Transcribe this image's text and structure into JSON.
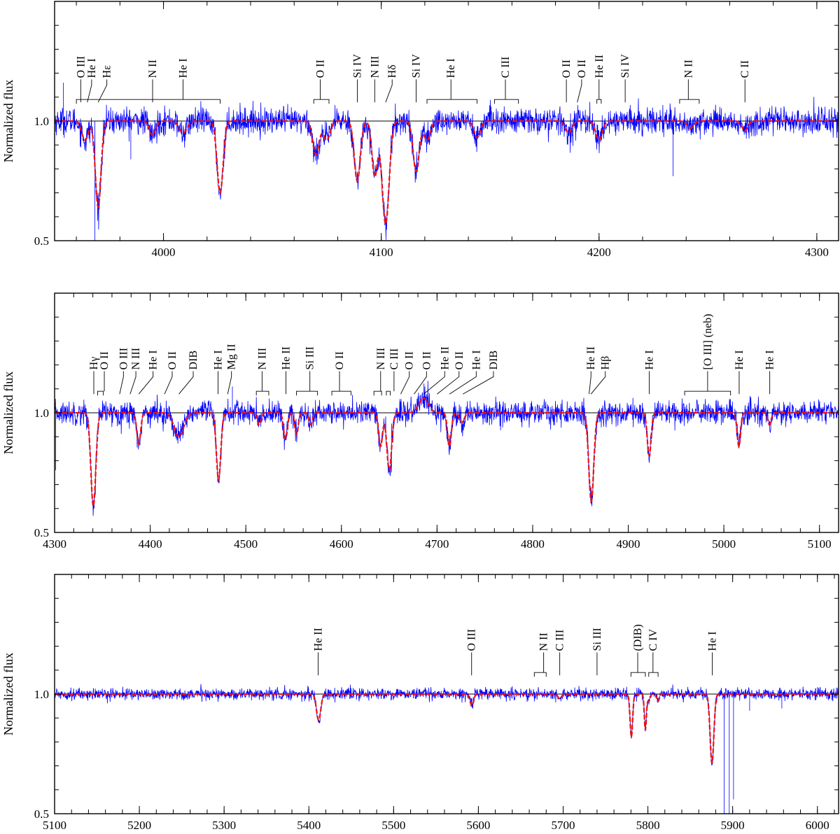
{
  "figure": {
    "ylabel": "Normalized flux"
  },
  "colors": {
    "observed": "#0000ff",
    "model": "#ee1111",
    "axes": "#000000"
  },
  "chart_data": [
    {
      "type": "line",
      "xlim": [
        3950,
        4310
      ],
      "ylim": [
        0.5,
        1.5
      ],
      "ylabel": "Normalized flux",
      "yticks": [
        0.5,
        1.0
      ],
      "ytick_labels": [
        "0.5",
        "1.0"
      ],
      "xticks": [
        4000,
        4100,
        4200,
        4300
      ],
      "xtick_labels": [
        "4000",
        "4100",
        "4200",
        "4300"
      ],
      "xminor_step": 20,
      "series": [
        {
          "style": "observed"
        },
        {
          "style": "model"
        }
      ],
      "observed_noise": 0.028,
      "lines": [
        {
          "x": 3964,
          "depth": 0.08,
          "width": 1.5
        },
        {
          "x": 3970,
          "depth": 0.36,
          "width": 1.3
        },
        {
          "x": 3995,
          "depth": 0.06,
          "width": 1.4
        },
        {
          "x": 4009,
          "depth": 0.05,
          "width": 1.8
        },
        {
          "x": 4026,
          "depth": 0.3,
          "width": 1.4
        },
        {
          "x": 4070,
          "depth": 0.14,
          "width": 1.5
        },
        {
          "x": 4075,
          "depth": 0.08,
          "width": 1.5
        },
        {
          "x": 4089,
          "depth": 0.25,
          "width": 1.4
        },
        {
          "x": 4097,
          "depth": 0.23,
          "width": 1.3
        },
        {
          "x": 4102,
          "depth": 0.43,
          "width": 1.6
        },
        {
          "x": 4116,
          "depth": 0.21,
          "width": 1.4
        },
        {
          "x": 4121,
          "depth": 0.08,
          "width": 1.5
        },
        {
          "x": 4144,
          "depth": 0.07,
          "width": 1.4
        },
        {
          "x": 4186,
          "depth": 0.05,
          "width": 1.5
        },
        {
          "x": 4200,
          "depth": 0.08,
          "width": 1.5
        },
        {
          "x": 4242,
          "depth": 0.03,
          "width": 1.5
        },
        {
          "x": 4267,
          "depth": 0.04,
          "width": 1.4
        }
      ],
      "spikes": [
        {
          "x": 3968.5,
          "y": 0.49
        },
        {
          "x": 4234,
          "y": 0.77
        },
        {
          "x": 3954,
          "y": 1.16
        },
        {
          "x": 3985,
          "y": 0.84
        }
      ],
      "annotations": [
        {
          "label": "O III",
          "x": 3962,
          "ltx": 3962,
          "brack": null
        },
        {
          "label": "He I",
          "x": 3967,
          "ltx": 3965,
          "brack": null
        },
        {
          "label": "Hε",
          "x": 3974,
          "ltx": 3970,
          "brack": null
        },
        {
          "label": "N II",
          "x": 3995,
          "ltx": 3995,
          "brack": null
        },
        {
          "label": "He I",
          "x": 4009,
          "ltx": 4009,
          "brack": [
            3960,
            4026
          ]
        },
        {
          "label": "O II",
          "x": 4072,
          "ltx": 4072,
          "brack": [
            4069,
            4076
          ]
        },
        {
          "label": "Si IV",
          "x": 4089,
          "ltx": 4089,
          "brack": null
        },
        {
          "label": "N III",
          "x": 4097,
          "ltx": 4097,
          "brack": null
        },
        {
          "label": "Hδ",
          "x": 4105,
          "ltx": 4102,
          "brack": null
        },
        {
          "label": "Si IV",
          "x": 4116,
          "ltx": 4116,
          "brack": null
        },
        {
          "label": "He I",
          "x": 4132,
          "ltx": 4132,
          "brack": [
            4121,
            4144
          ]
        },
        {
          "label": "C III",
          "x": 4157,
          "ltx": 4157,
          "brack": [
            4152,
            4163
          ]
        },
        {
          "label": "O II",
          "x": 4185,
          "ltx": 4185,
          "brack": null
        },
        {
          "label": "O II",
          "x": 4192,
          "ltx": 4190,
          "brack": null
        },
        {
          "label": "He II",
          "x": 4200,
          "ltx": 4200,
          "brack": [
            4199,
            4201
          ]
        },
        {
          "label": "Si IV",
          "x": 4212,
          "ltx": 4212,
          "brack": null
        },
        {
          "label": "N II",
          "x": 4241,
          "ltx": 4241,
          "brack": [
            4237,
            4246
          ]
        },
        {
          "label": "C II",
          "x": 4267,
          "ltx": 4267,
          "brack": null
        }
      ]
    },
    {
      "type": "line",
      "xlim": [
        4300,
        5120
      ],
      "ylim": [
        0.5,
        1.5
      ],
      "ylabel": "Normalized flux",
      "yticks": [
        0.5,
        1.0
      ],
      "ytick_labels": [
        "0.5",
        "1.0"
      ],
      "xticks": [
        4300,
        4400,
        4500,
        4600,
        4700,
        4800,
        4900,
        5000,
        5100
      ],
      "xtick_labels": [
        "4300",
        "4400",
        "4500",
        "4600",
        "4700",
        "4800",
        "4900",
        "5000",
        "5100"
      ],
      "xminor_step": 20,
      "series": [
        {
          "style": "observed"
        },
        {
          "style": "model"
        }
      ],
      "observed_noise": 0.025,
      "lines": [
        {
          "x": 4340.5,
          "depth": 0.39,
          "width": 2.6
        },
        {
          "x": 4388,
          "depth": 0.13,
          "width": 2.0
        },
        {
          "x": 4430,
          "depth": 0.1,
          "width": 5.0
        },
        {
          "x": 4471.5,
          "depth": 0.28,
          "width": 2.3
        },
        {
          "x": 4514,
          "depth": 0.05,
          "width": 2.0
        },
        {
          "x": 4541.5,
          "depth": 0.11,
          "width": 2.0
        },
        {
          "x": 4553,
          "depth": 0.09,
          "width": 1.8
        },
        {
          "x": 4568,
          "depth": 0.05,
          "width": 1.8
        },
        {
          "x": 4641,
          "depth": 0.14,
          "width": 2.0
        },
        {
          "x": 4650,
          "depth": 0.24,
          "width": 2.5
        },
        {
          "x": 4713,
          "depth": 0.14,
          "width": 2.0
        },
        {
          "x": 4726,
          "depth": 0.04,
          "width": 2.5
        },
        {
          "x": 4861.3,
          "depth": 0.37,
          "width": 2.6
        },
        {
          "x": 4921.9,
          "depth": 0.18,
          "width": 2.0
        },
        {
          "x": 5015.7,
          "depth": 0.14,
          "width": 1.8
        },
        {
          "x": 5047.7,
          "depth": 0.05,
          "width": 1.8
        }
      ],
      "bumps": [
        {
          "x": 4686,
          "height": 0.06,
          "width": 5.0
        }
      ],
      "spikes": [
        {
          "x": 4301,
          "y": 0.76
        },
        {
          "x": 4486,
          "y": 1.11
        }
      ],
      "annotations": [
        {
          "label": "Hγ",
          "x": 4341,
          "ltx": 4341,
          "brack": null
        },
        {
          "label": "O II",
          "x": 4352,
          "ltx": 4349,
          "brack": [
            4345,
            4351
          ]
        },
        {
          "label": "O III",
          "x": 4372,
          "ltx": 4368,
          "brack": null
        },
        {
          "label": "N III",
          "x": 4385,
          "ltx": 4379,
          "brack": null
        },
        {
          "label": "He I",
          "x": 4403,
          "ltx": 4388,
          "brack": null
        },
        {
          "label": "O II",
          "x": 4423,
          "ltx": 4415,
          "brack": null
        },
        {
          "label": "DIB",
          "x": 4445,
          "ltx": 4430,
          "brack": null
        },
        {
          "label": "He I",
          "x": 4471,
          "ltx": 4471,
          "brack": null
        },
        {
          "label": "Mg II",
          "x": 4485,
          "ltx": 4481,
          "brack": null
        },
        {
          "label": "N III",
          "x": 4517,
          "ltx": 4517,
          "brack": [
            4511,
            4524
          ]
        },
        {
          "label": "He II",
          "x": 4542,
          "ltx": 4542,
          "brack": null
        },
        {
          "label": "Si III",
          "x": 4567,
          "ltx": 4567,
          "brack": [
            4553,
            4575
          ]
        },
        {
          "label": "O II",
          "x": 4598,
          "ltx": 4598,
          "brack": [
            4590,
            4610
          ]
        },
        {
          "label": "N III",
          "x": 4641,
          "ltx": 4641,
          "brack": [
            4634,
            4642
          ]
        },
        {
          "label": "C III",
          "x": 4655,
          "ltx": 4650,
          "brack": [
            4647,
            4651
          ]
        },
        {
          "label": "O II",
          "x": 4671,
          "ltx": 4662,
          "brack": null
        },
        {
          "label": "O II",
          "x": 4689,
          "ltx": 4676,
          "brack": null
        },
        {
          "label": "He II",
          "x": 4708,
          "ltx": 4686,
          "brack": null
        },
        {
          "label": "O II",
          "x": 4723,
          "ltx": 4700,
          "brack": null
        },
        {
          "label": "He I",
          "x": 4741,
          "ltx": 4713,
          "brack": null
        },
        {
          "label": "DIB",
          "x": 4759,
          "ltx": 4727,
          "brack": null
        },
        {
          "label": "He II",
          "x": 4861,
          "ltx": 4859,
          "brack": null
        },
        {
          "label": "Hβ",
          "x": 4876,
          "ltx": 4861,
          "brack": null
        },
        {
          "label": "He I",
          "x": 4922,
          "ltx": 4922,
          "brack": null
        },
        {
          "label": "[O III] (neb)",
          "x": 4983,
          "ltx": 4983,
          "brack": [
            4959,
            5007
          ]
        },
        {
          "label": "He I",
          "x": 5016,
          "ltx": 5016,
          "brack": null
        },
        {
          "label": "He I",
          "x": 5048,
          "ltx": 5048,
          "brack": null
        }
      ]
    },
    {
      "type": "line",
      "xlim": [
        5100,
        6025
      ],
      "ylim": [
        0.5,
        1.5
      ],
      "ylabel": "Normalized flux",
      "yticks": [
        0.5,
        1.0
      ],
      "ytick_labels": [
        "0.5",
        "1.0"
      ],
      "xticks": [
        5100,
        5200,
        5300,
        5400,
        5500,
        5600,
        5700,
        5800,
        5900,
        6000
      ],
      "xtick_labels": [
        "5100",
        "5200",
        "5300",
        "5400",
        "5500",
        "5600",
        "5700",
        "5800",
        "5900",
        "6000"
      ],
      "xminor_step": 20,
      "series": [
        {
          "style": "observed"
        },
        {
          "style": "model"
        }
      ],
      "observed_noise": 0.012,
      "lines": [
        {
          "x": 5411.5,
          "depth": 0.11,
          "width": 2.5
        },
        {
          "x": 5592.3,
          "depth": 0.05,
          "width": 2.0
        },
        {
          "x": 5696,
          "depth": 0.02,
          "width": 2.0
        },
        {
          "x": 5780.5,
          "depth": 0.18,
          "width": 1.5
        },
        {
          "x": 5797,
          "depth": 0.15,
          "width": 1.2
        },
        {
          "x": 5801,
          "depth": 0.03,
          "width": 1.5
        },
        {
          "x": 5812,
          "depth": 0.03,
          "width": 1.5
        },
        {
          "x": 5875.6,
          "depth": 0.29,
          "width": 2.2
        }
      ],
      "spikes": [
        {
          "x": 5890,
          "y": 0.48
        },
        {
          "x": 5896,
          "y": 0.48
        },
        {
          "x": 5901,
          "y": 0.56
        },
        {
          "x": 5920,
          "y": 0.93
        },
        {
          "x": 5958,
          "y": 0.94
        }
      ],
      "annotations": [
        {
          "label": "He II",
          "x": 5411,
          "ltx": 5411,
          "brack": null
        },
        {
          "label": "O III",
          "x": 5592,
          "ltx": 5592,
          "brack": null
        },
        {
          "label": "N II",
          "x": 5677,
          "ltx": 5677,
          "brack": [
            5666,
            5680
          ]
        },
        {
          "label": "C III",
          "x": 5696,
          "ltx": 5696,
          "brack": null
        },
        {
          "label": "Si III",
          "x": 5740,
          "ltx": 5740,
          "brack": null
        },
        {
          "label": "(DIB)",
          "x": 5788,
          "ltx": 5788,
          "brack": [
            5780,
            5797
          ]
        },
        {
          "label": "C IV",
          "x": 5806,
          "ltx": 5806,
          "brack": [
            5801,
            5812
          ]
        },
        {
          "label": "He I",
          "x": 5876,
          "ltx": 5876,
          "brack": null
        }
      ]
    }
  ]
}
